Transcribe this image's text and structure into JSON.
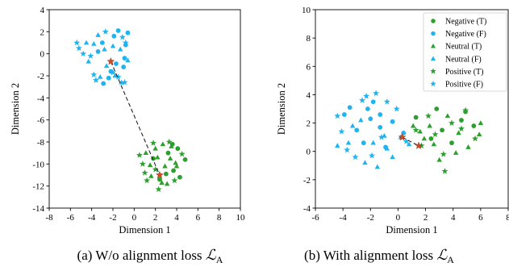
{
  "colors": {
    "green": "#2ca02c",
    "blue": "#1fb3ef",
    "star_red": "#d6461f",
    "connector": "#222222"
  },
  "chart_data": [
    {
      "type": "scatter",
      "caption": "(a) W/o alignment loss",
      "caption_math": "ℒ",
      "caption_sub": "A",
      "xlabel": "Dimension 1",
      "ylabel": "Dimension 2",
      "xlim": [
        -8,
        10
      ],
      "ylim": [
        -14,
        4
      ],
      "xticks": [
        -8,
        -6,
        -4,
        -2,
        0,
        2,
        4,
        6,
        8,
        10
      ],
      "yticks": [
        -14,
        -12,
        -10,
        -8,
        -6,
        -4,
        -2,
        0,
        2,
        4
      ],
      "legend": [],
      "centroids": [
        [
          -2.2,
          -0.7
        ],
        [
          2.4,
          -11.0
        ]
      ],
      "series": [
        {
          "name": "Negative (T)",
          "marker": "circle",
          "color": "green",
          "points": [
            [
              3.2,
              -9.0
            ],
            [
              4.8,
              -9.6
            ],
            [
              3.7,
              -10.6
            ],
            [
              2.4,
              -11.4
            ],
            [
              4.1,
              -8.6
            ],
            [
              3.0,
              -10.9
            ],
            [
              1.8,
              -9.5
            ],
            [
              4.3,
              -11.2
            ],
            [
              3.6,
              -8.2
            ]
          ]
        },
        {
          "name": "Negative (F)",
          "marker": "circle",
          "color": "blue",
          "points": [
            [
              -1.9,
              1.6
            ],
            [
              -0.8,
              0.8
            ],
            [
              -2.4,
              -2.2
            ],
            [
              -1.0,
              -1.2
            ],
            [
              -3.4,
              0.2
            ],
            [
              -2.9,
              -2.7
            ],
            [
              -1.5,
              2.1
            ],
            [
              -0.9,
              -0.4
            ],
            [
              -3.0,
              1.0
            ],
            [
              -2.2,
              -1.6
            ],
            [
              -0.6,
              1.9
            ],
            [
              -1.7,
              -0.9
            ]
          ]
        },
        {
          "name": "Neutral (T)",
          "marker": "triangle",
          "color": "green",
          "points": [
            [
              2.0,
              -8.6
            ],
            [
              3.4,
              -9.5
            ],
            [
              1.5,
              -10.1
            ],
            [
              2.9,
              -10.2
            ],
            [
              3.9,
              -9.9
            ],
            [
              2.6,
              -11.7
            ],
            [
              1.1,
              -9.0
            ],
            [
              4.0,
              -10.2
            ],
            [
              2.2,
              -9.4
            ],
            [
              3.1,
              -11.8
            ],
            [
              1.6,
              -11.1
            ],
            [
              3.5,
              -8.4
            ],
            [
              2.7,
              -8.2
            ]
          ]
        },
        {
          "name": "Neutral (F)",
          "marker": "triangle",
          "color": "blue",
          "points": [
            [
              -4.3,
              -0.7
            ],
            [
              -3.4,
              1.7
            ],
            [
              -2.8,
              0.4
            ],
            [
              -1.2,
              -2.6
            ],
            [
              -3.8,
              0.9
            ],
            [
              -1.8,
              -2.0
            ],
            [
              -2.6,
              -1.1
            ],
            [
              -1.3,
              0.4
            ],
            [
              -3.2,
              -2.1
            ],
            [
              -4.5,
              1.0
            ],
            [
              -2.0,
              0.7
            ],
            [
              -0.6,
              -0.6
            ]
          ]
        },
        {
          "name": "Positive (T)",
          "marker": "star",
          "color": "green",
          "points": [
            [
              1.0,
              -10.8
            ],
            [
              2.0,
              -10.5
            ],
            [
              0.5,
              -9.2
            ],
            [
              3.3,
              -8.0
            ],
            [
              1.2,
              -11.5
            ],
            [
              2.3,
              -12.3
            ],
            [
              4.5,
              -9.1
            ],
            [
              0.8,
              -10.0
            ],
            [
              3.8,
              -11.5
            ],
            [
              1.8,
              -8.1
            ]
          ]
        },
        {
          "name": "Positive (F)",
          "marker": "star",
          "color": "blue",
          "points": [
            [
              -5.2,
              0.5
            ],
            [
              -4.1,
              -0.2
            ],
            [
              -3.8,
              -1.9
            ],
            [
              -0.8,
              1.0
            ],
            [
              -2.0,
              -1.7
            ],
            [
              -1.5,
              -2.1
            ],
            [
              -1.1,
              1.5
            ],
            [
              -2.7,
              2.0
            ],
            [
              -4.8,
              0.0
            ],
            [
              -3.6,
              -2.4
            ],
            [
              -0.9,
              -2.6
            ],
            [
              -5.4,
              1.0
            ]
          ]
        }
      ]
    },
    {
      "type": "scatter",
      "caption": "(b) With alignment loss",
      "caption_math": "ℒ",
      "caption_sub": "A",
      "xlabel": "Dimension 1",
      "ylabel": "Dimension 2",
      "xlim": [
        -6,
        8
      ],
      "ylim": [
        -4,
        10
      ],
      "xticks": [
        -6,
        -4,
        -2,
        0,
        2,
        4,
        6,
        8
      ],
      "yticks": [
        -4,
        -2,
        0,
        2,
        4,
        6,
        8,
        10
      ],
      "legend": [
        "Negative (T)",
        "Negative (F)",
        "Neutral (T)",
        "Neutral (F)",
        "Positive (T)",
        "Positive (F)"
      ],
      "centroids": [
        [
          0.3,
          1.0
        ],
        [
          1.5,
          0.4
        ]
      ],
      "series": [
        {
          "name": "Negative (T)",
          "marker": "circle",
          "color": "green",
          "points": [
            [
              2.8,
              3.0
            ],
            [
              3.2,
              1.5
            ],
            [
              4.6,
              2.2
            ],
            [
              5.5,
              1.8
            ],
            [
              3.9,
              0.6
            ],
            [
              2.4,
              0.9
            ],
            [
              4.9,
              2.8
            ],
            [
              1.3,
              2.4
            ]
          ]
        },
        {
          "name": "Negative (F)",
          "marker": "circle",
          "color": "blue",
          "points": [
            [
              -3.5,
              3.1
            ],
            [
              -2.0,
              2.3
            ],
            [
              -3.0,
              1.5
            ],
            [
              -1.3,
              1.7
            ],
            [
              -0.4,
              2.1
            ],
            [
              -2.5,
              0.6
            ],
            [
              -1.8,
              3.5
            ],
            [
              -0.9,
              0.3
            ],
            [
              -3.9,
              2.6
            ],
            [
              -1.3,
              2.6
            ],
            [
              0.4,
              1.3
            ],
            [
              -2.2,
              3.0
            ]
          ]
        },
        {
          "name": "Neutral (T)",
          "marker": "triangle",
          "color": "green",
          "points": [
            [
              1.6,
              1.4
            ],
            [
              2.6,
              0.5
            ],
            [
              3.6,
              2.5
            ],
            [
              4.4,
              1.3
            ],
            [
              5.1,
              0.3
            ],
            [
              5.9,
              1.2
            ],
            [
              3.0,
              -0.6
            ],
            [
              1.9,
              0.9
            ],
            [
              4.2,
              -0.1
            ],
            [
              1.1,
              1.8
            ],
            [
              6.0,
              2.0
            ],
            [
              2.3,
              1.8
            ]
          ]
        },
        {
          "name": "Neutral (F)",
          "marker": "triangle",
          "color": "blue",
          "points": [
            [
              -2.7,
              2.2
            ],
            [
              -3.6,
              0.6
            ],
            [
              -1.8,
              0.6
            ],
            [
              -1.0,
              1.1
            ],
            [
              -2.4,
              -0.8
            ],
            [
              -0.8,
              0.2
            ],
            [
              0.8,
              0.5
            ],
            [
              -1.5,
              -1.1
            ],
            [
              -3.3,
              1.8
            ],
            [
              -0.4,
              -0.4
            ],
            [
              0.2,
              1.0
            ],
            [
              -4.4,
              0.4
            ]
          ]
        },
        {
          "name": "Positive (T)",
          "marker": "star",
          "color": "green",
          "points": [
            [
              2.2,
              2.5
            ],
            [
              3.4,
              -1.4
            ],
            [
              4.9,
              2.9
            ],
            [
              5.6,
              0.9
            ],
            [
              1.3,
              1.5
            ],
            [
              3.3,
              -0.2
            ],
            [
              4.6,
              1.6
            ],
            [
              2.7,
              1.2
            ],
            [
              1.7,
              0.4
            ],
            [
              3.9,
              2.0
            ]
          ]
        },
        {
          "name": "Positive (F)",
          "marker": "star",
          "color": "blue",
          "points": [
            [
              -4.4,
              2.5
            ],
            [
              -2.3,
              3.9
            ],
            [
              -1.6,
              4.1
            ],
            [
              -0.1,
              3.0
            ],
            [
              -4.1,
              1.4
            ],
            [
              -1.9,
              -0.3
            ],
            [
              -3.1,
              -0.4
            ],
            [
              -0.8,
              3.5
            ],
            [
              -1.2,
              1.0
            ],
            [
              0.6,
              0.7
            ],
            [
              -2.6,
              3.6
            ],
            [
              -3.7,
              0.1
            ]
          ]
        }
      ]
    }
  ]
}
